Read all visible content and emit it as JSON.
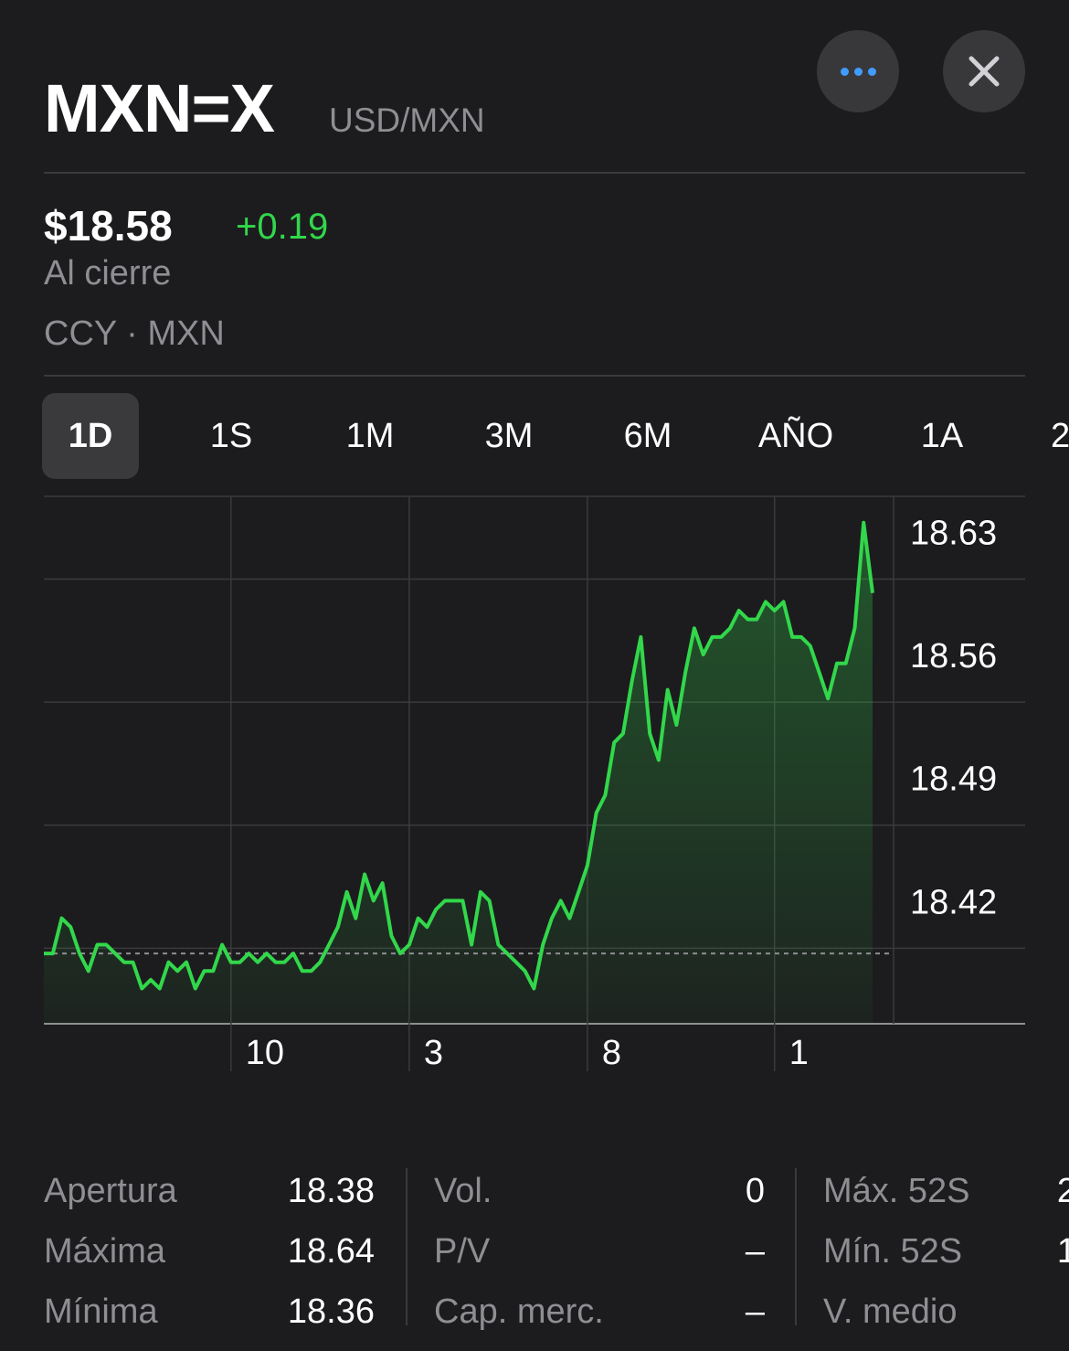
{
  "header": {
    "symbol": "MXN=X",
    "name": "USD/MXN",
    "more_icon": "ellipsis-icon",
    "close_icon": "close-icon"
  },
  "quote": {
    "price": "$18.58",
    "change": "+0.19",
    "status": "Al cierre",
    "exchange": "CCY · MXN"
  },
  "tabs": [
    {
      "label": "1D",
      "active": true
    },
    {
      "label": "1S"
    },
    {
      "label": "1M"
    },
    {
      "label": "3M"
    },
    {
      "label": "6M"
    },
    {
      "label": "AÑO"
    },
    {
      "label": "1A"
    },
    {
      "label": "2"
    }
  ],
  "colors": {
    "background": "#1c1c1e",
    "positive": "#32d74b",
    "accent": "#409cff",
    "muted": "#8e8e93"
  },
  "chart_data": {
    "type": "area",
    "y_tick_labels": [
      "18.63",
      "18.56",
      "18.49",
      "18.42"
    ],
    "x_tick_labels": [
      "10",
      "3",
      "8",
      "1"
    ],
    "ylim": [
      18.35,
      18.65
    ],
    "previous_close": 18.39,
    "series": [
      {
        "values": [
          18.39,
          18.39,
          18.41,
          18.405,
          18.39,
          18.38,
          18.395,
          18.395,
          18.39,
          18.385,
          18.385,
          18.37,
          18.375,
          18.37,
          18.385,
          18.38,
          18.385,
          18.37,
          18.38,
          18.38,
          18.395,
          18.385,
          18.385,
          18.39,
          18.385,
          18.39,
          18.385,
          18.385,
          18.39,
          18.38,
          18.38,
          18.385,
          18.395,
          18.405,
          18.425,
          18.41,
          18.435,
          18.42,
          18.43,
          18.4,
          18.39,
          18.395,
          18.41,
          18.405,
          18.415,
          18.42,
          18.42,
          18.42,
          18.395,
          18.425,
          18.42,
          18.395,
          18.39,
          18.385,
          18.38,
          18.37,
          18.395,
          18.41,
          18.42,
          18.41,
          18.425,
          18.44,
          18.47,
          18.48,
          18.51,
          18.515,
          18.545,
          18.57,
          18.515,
          18.5,
          18.54,
          18.52,
          18.55,
          18.575,
          18.56,
          18.57,
          18.57,
          18.575,
          18.585,
          18.58,
          18.58,
          18.59,
          18.585,
          18.59,
          18.57,
          18.57,
          18.565,
          18.55,
          18.535,
          18.555,
          18.555,
          18.575,
          18.635,
          18.595
        ]
      }
    ]
  },
  "stats": {
    "col1": [
      {
        "label": "Apertura",
        "value": "18.38"
      },
      {
        "label": "Máxima",
        "value": "18.64"
      },
      {
        "label": "Mínima",
        "value": "18.36"
      }
    ],
    "col2": [
      {
        "label": "Vol.",
        "value": "0"
      },
      {
        "label": "P/V",
        "value": "–"
      },
      {
        "label": "Cap. merc.",
        "value": "–"
      }
    ],
    "col3": [
      {
        "label": "Máx. 52S",
        "value": "2"
      },
      {
        "label": "Mín. 52S",
        "value": "1"
      },
      {
        "label": "V. medio",
        "value": ""
      }
    ]
  }
}
